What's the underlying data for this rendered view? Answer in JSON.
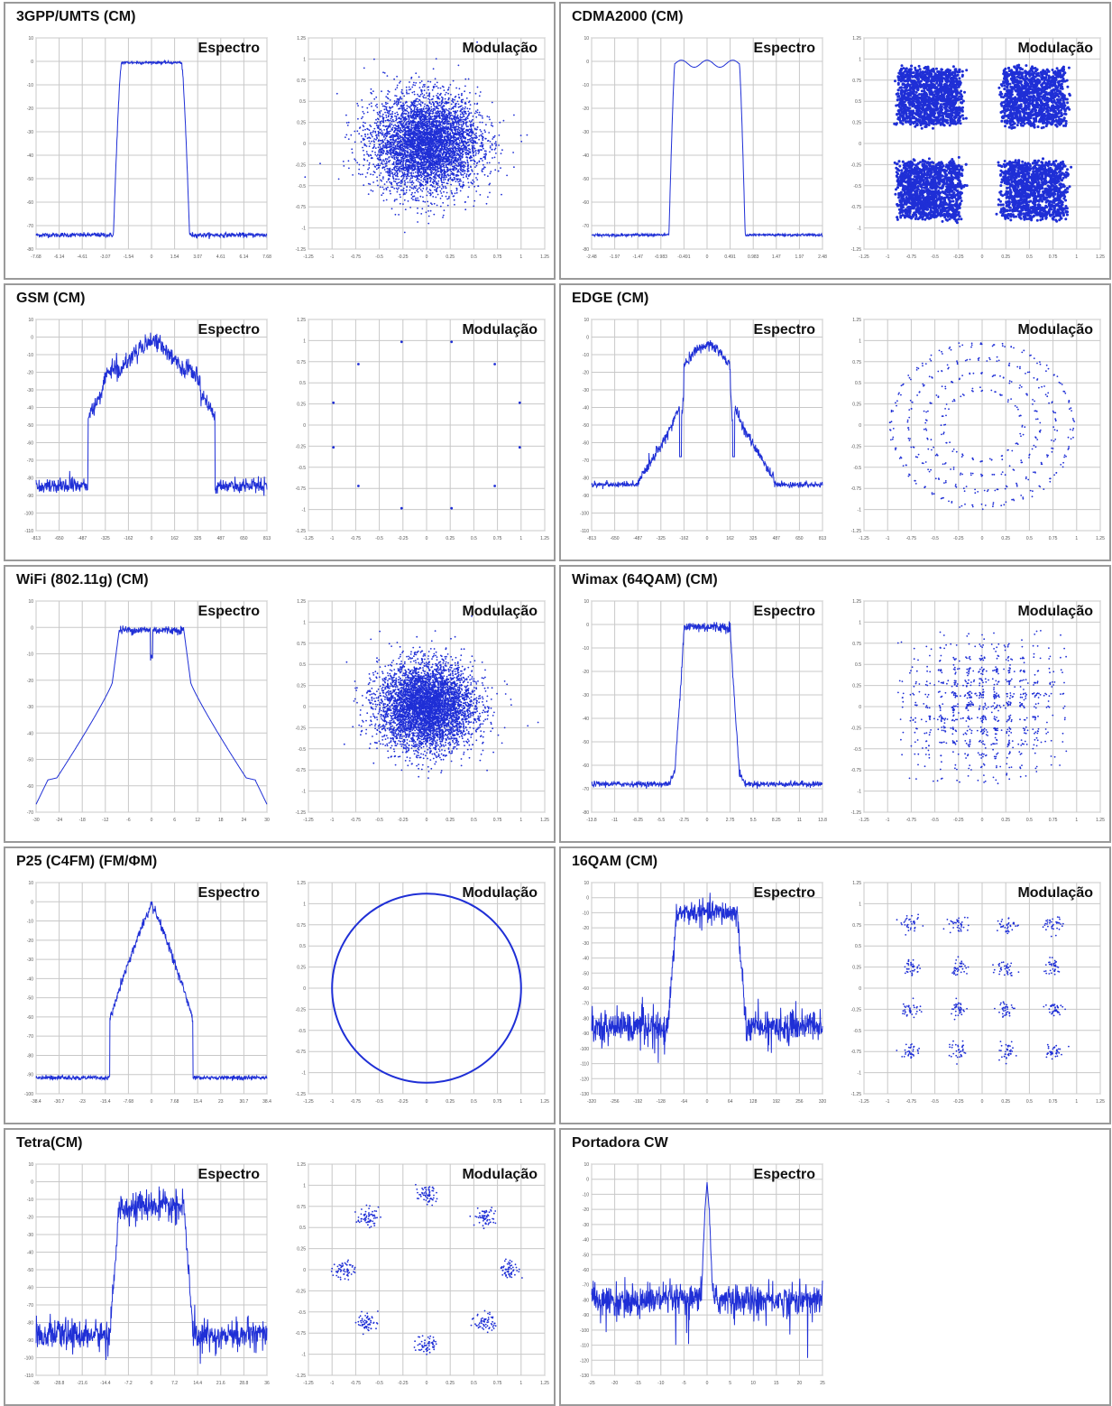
{
  "colors": {
    "trace": "#1f2fd6",
    "grid": "#c8c8c8",
    "frame": "#9a9a9a",
    "tick": "#555555"
  },
  "labels": {
    "spectrum": "Espectro",
    "modulation": "Modulação"
  },
  "panels": [
    {
      "title": "3GPP/UMTS (CM)",
      "spectrum": {
        "shape": "wcdma",
        "yticks": [
          "10",
          "0",
          "-10",
          "-20",
          "-30",
          "-40",
          "-50",
          "-60",
          "-70",
          "-80"
        ],
        "xticks": [
          "-7.68",
          "-6.14",
          "-4.61",
          "-3.07",
          "-1.54",
          "0",
          "1.54",
          "3.07",
          "4.61",
          "6.14",
          "7.68"
        ]
      },
      "modulation": {
        "type": "cloud",
        "spread": 0.28
      }
    },
    {
      "title": "CDMA2000 (CM)",
      "spectrum": {
        "shape": "cdma",
        "yticks": [
          "10",
          "0",
          "-10",
          "-20",
          "-30",
          "-40",
          "-50",
          "-60",
          "-70",
          "-80"
        ],
        "xticks": [
          "-2.48",
          "-1.97",
          "-1.47",
          "-0.983",
          "-0.491",
          "0",
          "0.491",
          "0.983",
          "1.47",
          "1.97",
          "2.48"
        ]
      },
      "modulation": {
        "type": "cdma2000"
      }
    },
    {
      "title": "GSM (CM)",
      "spectrum": {
        "shape": "gsm",
        "yticks": [
          "10",
          "0",
          "-10",
          "-20",
          "-30",
          "-40",
          "-50",
          "-60",
          "-70",
          "-80",
          "-90",
          "-100",
          "-110"
        ],
        "xticks": [
          "-813",
          "-650",
          "-487",
          "-325",
          "-162",
          "0",
          "162",
          "325",
          "487",
          "650",
          "813"
        ]
      },
      "modulation": {
        "type": "gsm"
      }
    },
    {
      "title": "EDGE (CM)",
      "spectrum": {
        "shape": "edge",
        "yticks": [
          "10",
          "0",
          "-10",
          "-20",
          "-30",
          "-40",
          "-50",
          "-60",
          "-70",
          "-80",
          "-90",
          "-100",
          "-110"
        ],
        "xticks": [
          "-813",
          "-650",
          "-487",
          "-325",
          "-162",
          "0",
          "162",
          "325",
          "487",
          "650",
          "813"
        ]
      },
      "modulation": {
        "type": "edge"
      }
    },
    {
      "title": "WiFi (802.11g) (CM)",
      "spectrum": {
        "shape": "wifi",
        "yticks": [
          "10",
          "0",
          "-10",
          "-20",
          "-30",
          "-40",
          "-50",
          "-60",
          "-70"
        ],
        "xticks": [
          "-30",
          "-24",
          "-18",
          "-12",
          "-6",
          "0",
          "6",
          "12",
          "18",
          "24",
          "30"
        ]
      },
      "modulation": {
        "type": "cloud",
        "spread": 0.25
      }
    },
    {
      "title": "Wimax (64QAM) (CM)",
      "spectrum": {
        "shape": "wimax",
        "yticks": [
          "10",
          "0",
          "-10",
          "-20",
          "-30",
          "-40",
          "-50",
          "-60",
          "-70",
          "-80"
        ],
        "xticks": [
          "-13.8",
          "-11",
          "-8.25",
          "-5.5",
          "-2.75",
          "0",
          "2.75",
          "5.5",
          "8.25",
          "11",
          "13.8"
        ]
      },
      "modulation": {
        "type": "wimax"
      }
    },
    {
      "title": "P25 (C4FM) (FM/ΦM)",
      "spectrum": {
        "shape": "p25",
        "yticks": [
          "10",
          "0",
          "-10",
          "-20",
          "-30",
          "-40",
          "-50",
          "-60",
          "-70",
          "-80",
          "-90",
          "-100"
        ],
        "xticks": [
          "-38.4",
          "-30.7",
          "-23",
          "-15.4",
          "-7.68",
          "0",
          "7.68",
          "15.4",
          "23",
          "30.7",
          "38.4"
        ]
      },
      "modulation": {
        "type": "circle"
      }
    },
    {
      "title": "16QAM (CM)",
      "spectrum": {
        "shape": "qam16",
        "yticks": [
          "10",
          "0",
          "-10",
          "-20",
          "-30",
          "-40",
          "-50",
          "-60",
          "-70",
          "-80",
          "-90",
          "-100",
          "-110",
          "-120",
          "-130"
        ],
        "xticks": [
          "-320",
          "-256",
          "-192",
          "-128",
          "-64",
          "0",
          "64",
          "128",
          "192",
          "256",
          "320"
        ]
      },
      "modulation": {
        "type": "qam16"
      }
    },
    {
      "title": "Tetra(CM)",
      "spectrum": {
        "shape": "tetra",
        "yticks": [
          "10",
          "0",
          "-10",
          "-20",
          "-30",
          "-40",
          "-50",
          "-60",
          "-70",
          "-80",
          "-90",
          "-100",
          "-110"
        ],
        "xticks": [
          "-36",
          "-28.8",
          "-21.6",
          "-14.4",
          "-7.2",
          "0",
          "7.2",
          "14.4",
          "21.6",
          "28.8",
          "36"
        ]
      },
      "modulation": {
        "type": "tetra"
      }
    },
    {
      "title": "Portadora CW",
      "spectrum": {
        "shape": "cw",
        "yticks": [
          "10",
          "0",
          "-10",
          "-20",
          "-30",
          "-40",
          "-50",
          "-60",
          "-70",
          "-80",
          "-90",
          "-100",
          "-110",
          "-120",
          "-130"
        ],
        "xticks": [
          "-25",
          "-20",
          "-15",
          "-10",
          "-5",
          "0",
          "5",
          "10",
          "15",
          "20",
          "25"
        ]
      },
      "modulation": null
    }
  ],
  "mod_ticks": [
    "1.25",
    "1",
    "0.75",
    "0.5",
    "0.25",
    "0",
    "-0.25",
    "-0.5",
    "-0.75",
    "-1",
    "-1.25"
  ],
  "mod_xticks": [
    "-1.25",
    "-1",
    "-0.75",
    "-0.5",
    "-0.25",
    "0",
    "0.25",
    "0.5",
    "0.75",
    "1",
    "1.25"
  ]
}
